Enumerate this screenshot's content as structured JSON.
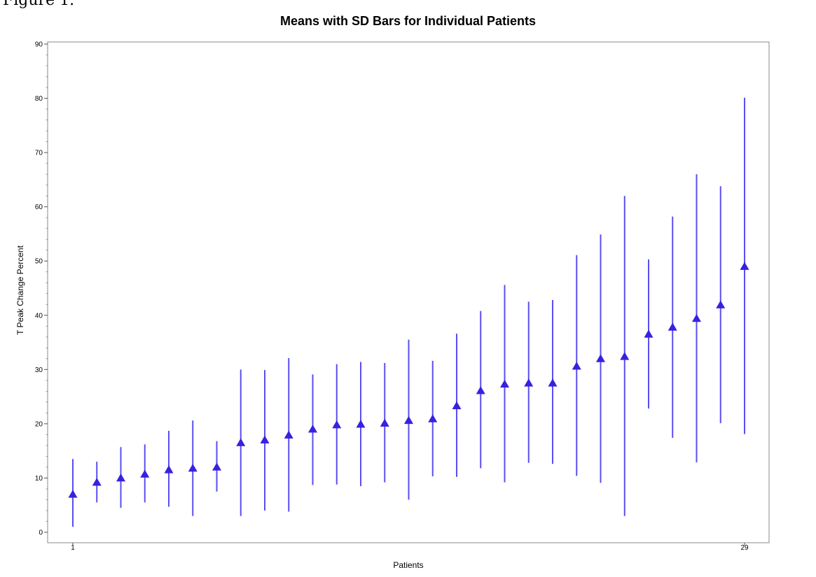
{
  "figure_label": "Figure 1.",
  "chart_data": {
    "type": "scatter",
    "title": "Means with SD Bars for Individual Patients",
    "xlabel": "Patients",
    "ylabel": "T Peak Change Percent",
    "ylim": [
      0,
      90
    ],
    "yticks": [
      0,
      10,
      20,
      30,
      40,
      50,
      60,
      70,
      80,
      90
    ],
    "xtick_labels": [
      {
        "x": 1,
        "label": "1"
      },
      {
        "x": 29,
        "label": "29"
      }
    ],
    "marker": "triangle",
    "color": "#3b1fe0",
    "error_bar_color": "#5a4ef0",
    "points": [
      {
        "x": 1,
        "mean": 7.0,
        "low": 1.0,
        "high": 13.5
      },
      {
        "x": 2,
        "mean": 9.2,
        "low": 5.5,
        "high": 13.0
      },
      {
        "x": 3,
        "mean": 10.0,
        "low": 4.5,
        "high": 15.7
      },
      {
        "x": 4,
        "mean": 10.7,
        "low": 5.5,
        "high": 16.2
      },
      {
        "x": 5,
        "mean": 11.5,
        "low": 4.7,
        "high": 18.7
      },
      {
        "x": 6,
        "mean": 11.8,
        "low": 3.0,
        "high": 20.6
      },
      {
        "x": 7,
        "mean": 12.0,
        "low": 7.5,
        "high": 16.8
      },
      {
        "x": 8,
        "mean": 16.5,
        "low": 3.0,
        "high": 30.0
      },
      {
        "x": 9,
        "mean": 17.0,
        "low": 4.0,
        "high": 29.9
      },
      {
        "x": 10,
        "mean": 17.9,
        "low": 3.8,
        "high": 32.1
      },
      {
        "x": 11,
        "mean": 19.0,
        "low": 8.7,
        "high": 29.1
      },
      {
        "x": 12,
        "mean": 19.8,
        "low": 8.8,
        "high": 31.0
      },
      {
        "x": 13,
        "mean": 19.9,
        "low": 8.5,
        "high": 31.4
      },
      {
        "x": 14,
        "mean": 20.1,
        "low": 9.2,
        "high": 31.2
      },
      {
        "x": 15,
        "mean": 20.6,
        "low": 6.0,
        "high": 35.5
      },
      {
        "x": 16,
        "mean": 20.9,
        "low": 10.3,
        "high": 31.6
      },
      {
        "x": 17,
        "mean": 23.3,
        "low": 10.2,
        "high": 36.6
      },
      {
        "x": 18,
        "mean": 26.1,
        "low": 11.8,
        "high": 40.8
      },
      {
        "x": 19,
        "mean": 27.3,
        "low": 9.2,
        "high": 45.6
      },
      {
        "x": 20,
        "mean": 27.5,
        "low": 12.8,
        "high": 42.5
      },
      {
        "x": 21,
        "mean": 27.5,
        "low": 12.6,
        "high": 42.8
      },
      {
        "x": 22,
        "mean": 30.6,
        "low": 10.4,
        "high": 51.1
      },
      {
        "x": 23,
        "mean": 32.0,
        "low": 9.1,
        "high": 54.9
      },
      {
        "x": 24,
        "mean": 32.4,
        "low": 3.0,
        "high": 62.0
      },
      {
        "x": 25,
        "mean": 36.5,
        "low": 22.8,
        "high": 50.3
      },
      {
        "x": 26,
        "mean": 37.8,
        "low": 17.4,
        "high": 58.2
      },
      {
        "x": 27,
        "mean": 39.4,
        "low": 12.9,
        "high": 66.0
      },
      {
        "x": 28,
        "mean": 41.9,
        "low": 20.1,
        "high": 63.8
      },
      {
        "x": 29,
        "mean": 49.0,
        "low": 18.1,
        "high": 80.1
      }
    ]
  }
}
